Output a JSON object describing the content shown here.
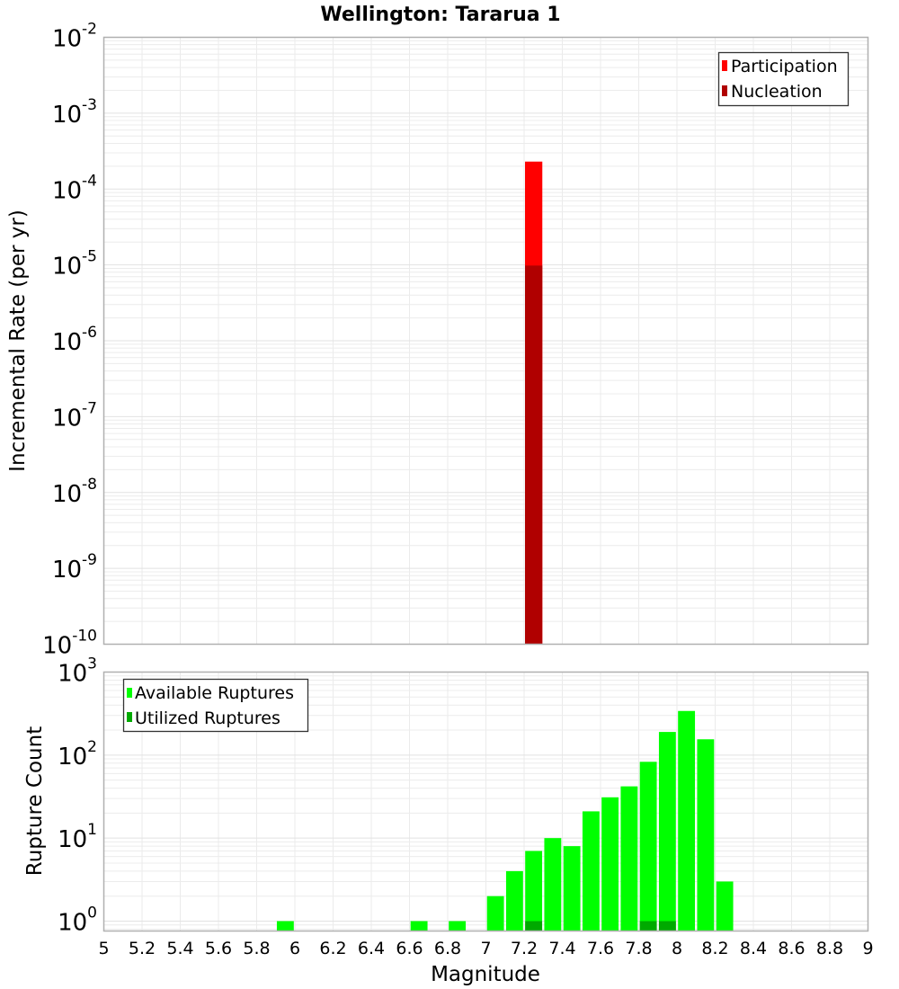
{
  "chart_data": {
    "title": "Wellington: Tararua 1",
    "xlabel": "Magnitude",
    "xlim": [
      5,
      9
    ],
    "xticks": [
      "5",
      "5.2",
      "5.4",
      "5.6",
      "5.8",
      "6",
      "6.2",
      "6.4",
      "6.6",
      "6.8",
      "7",
      "7.2",
      "7.4",
      "7.6",
      "7.8",
      "8",
      "8.2",
      "8.4",
      "8.6",
      "8.8",
      "9"
    ],
    "bin_width": 0.1,
    "grid": true,
    "panels": [
      {
        "id": "rate",
        "type": "bar",
        "ylabel": "Incremental Rate (per yr)",
        "yscale": "log",
        "ylim": [
          1e-10,
          0.01
        ],
        "yticks": [
          {
            "base": "10",
            "exp": "-2"
          },
          {
            "base": "10",
            "exp": "-3"
          },
          {
            "base": "10",
            "exp": "-4"
          },
          {
            "base": "10",
            "exp": "-5"
          },
          {
            "base": "10",
            "exp": "-6"
          },
          {
            "base": "10",
            "exp": "-7"
          },
          {
            "base": "10",
            "exp": "-8"
          },
          {
            "base": "10",
            "exp": "-9"
          },
          {
            "base": "10",
            "exp": "-10"
          }
        ],
        "legend_position": "upper right",
        "series": [
          {
            "name": "Participation",
            "color": "#ff0000",
            "x": [
              7.25
            ],
            "values": [
              0.00023
            ]
          },
          {
            "name": "Nucleation",
            "color": "#b00000",
            "x": [
              7.25
            ],
            "values": [
              9.8e-06
            ]
          }
        ]
      },
      {
        "id": "count",
        "type": "bar",
        "ylabel": "Rupture Count",
        "yscale": "log",
        "ylim": [
          0.76,
          1000
        ],
        "yticks": [
          {
            "base": "10",
            "exp": "3"
          },
          {
            "base": "10",
            "exp": "2"
          },
          {
            "base": "10",
            "exp": "1"
          },
          {
            "base": "10",
            "exp": "0"
          }
        ],
        "legend_position": "upper left",
        "series": [
          {
            "name": "Available Ruptures",
            "color": "#00ff00",
            "x": [
              5.95,
              6.65,
              6.85,
              7.05,
              7.15,
              7.25,
              7.35,
              7.45,
              7.55,
              7.65,
              7.75,
              7.85,
              7.95,
              8.05,
              8.15,
              8.25
            ],
            "values": [
              1,
              1,
              1,
              2,
              4,
              7,
              10,
              8,
              21,
              31,
              42,
              83,
              190,
              340,
              155,
              3
            ]
          },
          {
            "name": "Utilized Ruptures",
            "color": "#00aa00",
            "x": [
              7.25,
              7.85,
              7.95
            ],
            "values": [
              1,
              1,
              1
            ]
          }
        ]
      }
    ]
  },
  "legend": {
    "rate": [
      {
        "label": "Participation",
        "color": "#ff0000"
      },
      {
        "label": "Nucleation",
        "color": "#b00000"
      }
    ],
    "count": [
      {
        "label": "Available Ruptures",
        "color": "#00ff00"
      },
      {
        "label": "Utilized Ruptures",
        "color": "#00aa00"
      }
    ]
  }
}
